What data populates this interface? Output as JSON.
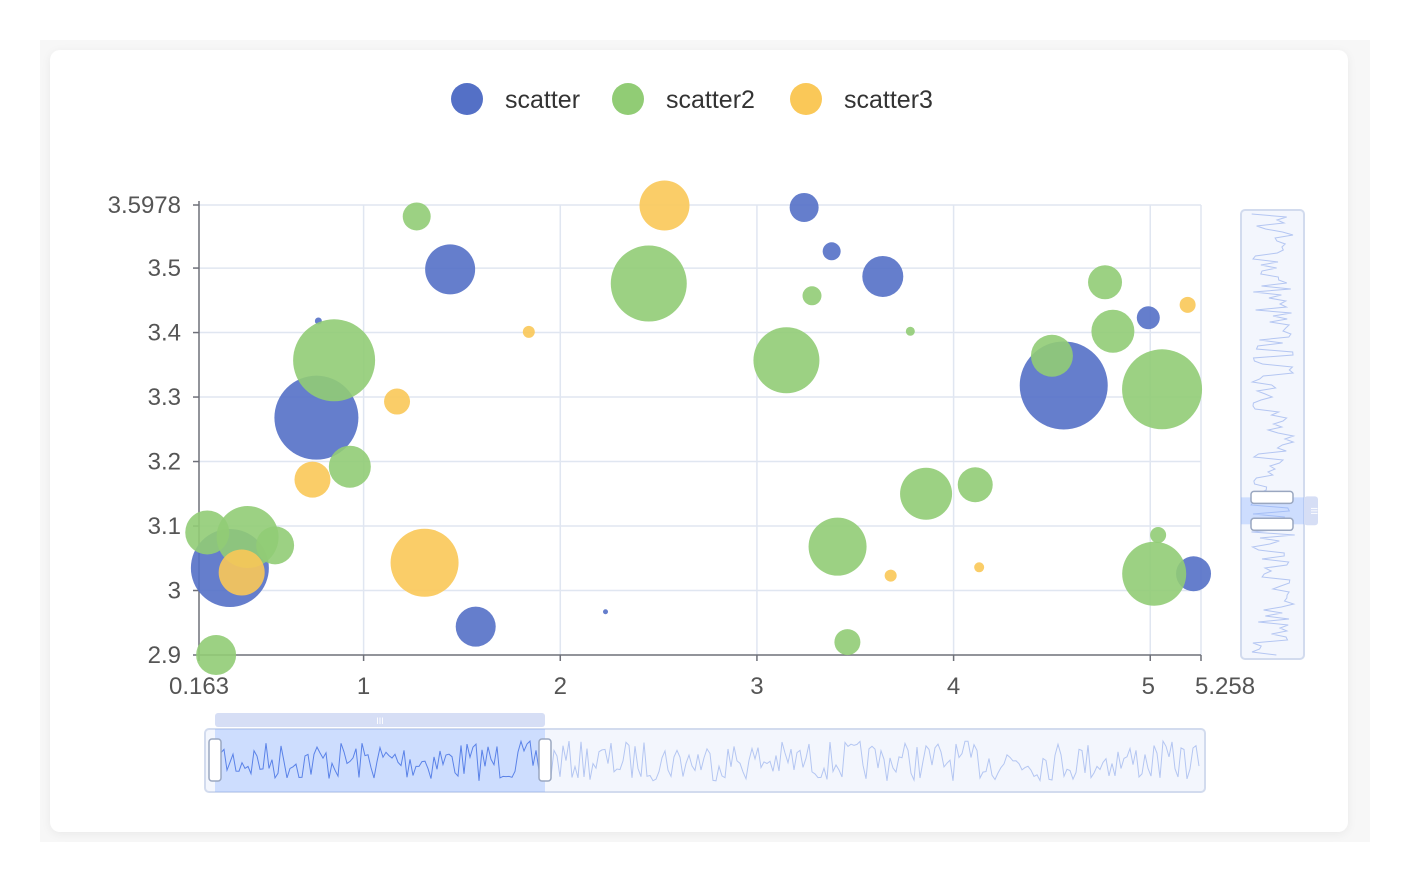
{
  "chart_data": {
    "type": "scatter",
    "title": "",
    "xlabel": "",
    "ylabel": "",
    "xlim": [
      0.163,
      5.258
    ],
    "ylim": [
      2.9,
      3.5978
    ],
    "x_ticks": [
      {
        "value": 0.163,
        "label": "0.163"
      },
      {
        "value": 1,
        "label": "1"
      },
      {
        "value": 2,
        "label": "2"
      },
      {
        "value": 3,
        "label": "3"
      },
      {
        "value": 4,
        "label": "4"
      },
      {
        "value": 5,
        "label": "5"
      },
      {
        "value": 5.258,
        "label": "5.258"
      }
    ],
    "y_ticks": [
      {
        "value": 2.9,
        "label": "2.9"
      },
      {
        "value": 3.0,
        "label": "3"
      },
      {
        "value": 3.1,
        "label": "3.1"
      },
      {
        "value": 3.2,
        "label": "3.2"
      },
      {
        "value": 3.3,
        "label": "3.3"
      },
      {
        "value": 3.4,
        "label": "3.4"
      },
      {
        "value": 3.5,
        "label": "3.5"
      },
      {
        "value": 3.5978,
        "label": "3.5978"
      }
    ],
    "grid": true,
    "legend_position": "top-center",
    "datazoom": {
      "x_slider_range_percent": [
        0,
        34
      ],
      "y_slider_range_percent": [
        30,
        36
      ]
    },
    "series": [
      {
        "name": "scatter",
        "color": "#5470c6",
        "points": [
          {
            "x": 0.32,
            "y": 3.035,
            "size": 78
          },
          {
            "x": 0.76,
            "y": 3.268,
            "size": 84
          },
          {
            "x": 0.77,
            "y": 3.418,
            "size": 7
          },
          {
            "x": 1.44,
            "y": 3.498,
            "size": 50
          },
          {
            "x": 1.57,
            "y": 2.944,
            "size": 40
          },
          {
            "x": 2.23,
            "y": 2.967,
            "size": 5
          },
          {
            "x": 3.24,
            "y": 3.594,
            "size": 29
          },
          {
            "x": 3.38,
            "y": 3.526,
            "size": 18
          },
          {
            "x": 3.64,
            "y": 3.487,
            "size": 41
          },
          {
            "x": 4.56,
            "y": 3.318,
            "size": 88
          },
          {
            "x": 4.99,
            "y": 3.423,
            "size": 23
          },
          {
            "x": 5.22,
            "y": 3.026,
            "size": 35
          }
        ]
      },
      {
        "name": "scatter2",
        "color": "#91cc75",
        "points": [
          {
            "x": 0.205,
            "y": 3.09,
            "size": 44
          },
          {
            "x": 0.25,
            "y": 2.9,
            "size": 40
          },
          {
            "x": 0.41,
            "y": 3.083,
            "size": 62
          },
          {
            "x": 0.55,
            "y": 3.07,
            "size": 38
          },
          {
            "x": 0.85,
            "y": 3.357,
            "size": 82
          },
          {
            "x": 0.93,
            "y": 3.192,
            "size": 42
          },
          {
            "x": 1.27,
            "y": 3.58,
            "size": 28
          },
          {
            "x": 2.45,
            "y": 3.476,
            "size": 76
          },
          {
            "x": 3.15,
            "y": 3.357,
            "size": 66
          },
          {
            "x": 3.28,
            "y": 3.457,
            "size": 19
          },
          {
            "x": 3.41,
            "y": 3.068,
            "size": 58
          },
          {
            "x": 3.46,
            "y": 2.92,
            "size": 26
          },
          {
            "x": 3.78,
            "y": 3.402,
            "size": 9
          },
          {
            "x": 3.86,
            "y": 3.15,
            "size": 52
          },
          {
            "x": 4.11,
            "y": 3.164,
            "size": 35
          },
          {
            "x": 4.5,
            "y": 3.364,
            "size": 42
          },
          {
            "x": 4.77,
            "y": 3.478,
            "size": 34
          },
          {
            "x": 4.81,
            "y": 3.402,
            "size": 43
          },
          {
            "x": 5.02,
            "y": 3.026,
            "size": 64
          },
          {
            "x": 5.04,
            "y": 3.086,
            "size": 16
          },
          {
            "x": 5.06,
            "y": 3.312,
            "size": 80
          }
        ]
      },
      {
        "name": "scatter3",
        "color": "#fac858",
        "points": [
          {
            "x": 0.38,
            "y": 3.028,
            "size": 46
          },
          {
            "x": 0.74,
            "y": 3.172,
            "size": 36
          },
          {
            "x": 1.17,
            "y": 3.293,
            "size": 26
          },
          {
            "x": 1.31,
            "y": 3.043,
            "size": 68
          },
          {
            "x": 1.84,
            "y": 3.401,
            "size": 12
          },
          {
            "x": 2.53,
            "y": 3.597,
            "size": 50
          },
          {
            "x": 3.68,
            "y": 3.023,
            "size": 12
          },
          {
            "x": 4.13,
            "y": 3.036,
            "size": 10
          },
          {
            "x": 5.19,
            "y": 3.443,
            "size": 16
          }
        ]
      }
    ]
  }
}
